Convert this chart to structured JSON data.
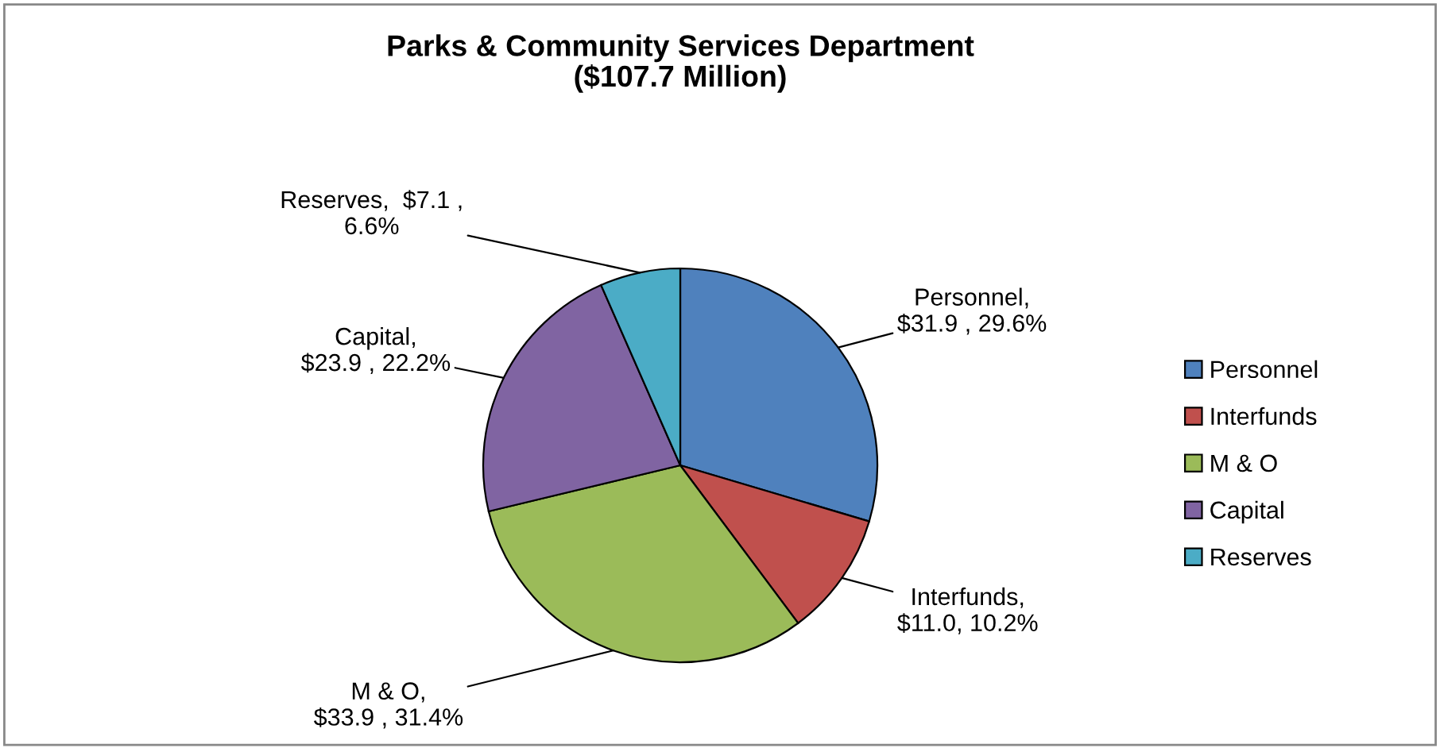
{
  "chart_data": {
    "type": "pie",
    "title": "Parks & Community Services Department\n($107.7 Million)",
    "categories": [
      "Personnel",
      "Interfunds",
      "M & O",
      "Capital",
      "Reserves"
    ],
    "values": [
      31.9,
      11.0,
      33.9,
      23.9,
      7.1
    ],
    "value_labels": [
      "Personnel,\n$31.9 , 29.6%",
      "Interfunds,\n$11.0, 10.2%",
      "M & O,\n$33.9 , 31.4%",
      "Capital,\n$23.9 , 22.2%",
      "Reserves,  $7.1 ,\n6.6%"
    ],
    "colors": [
      "#4f81bd",
      "#c0504d",
      "#9bbb59",
      "#8064a2",
      "#4bacc6"
    ],
    "legend": "right"
  }
}
